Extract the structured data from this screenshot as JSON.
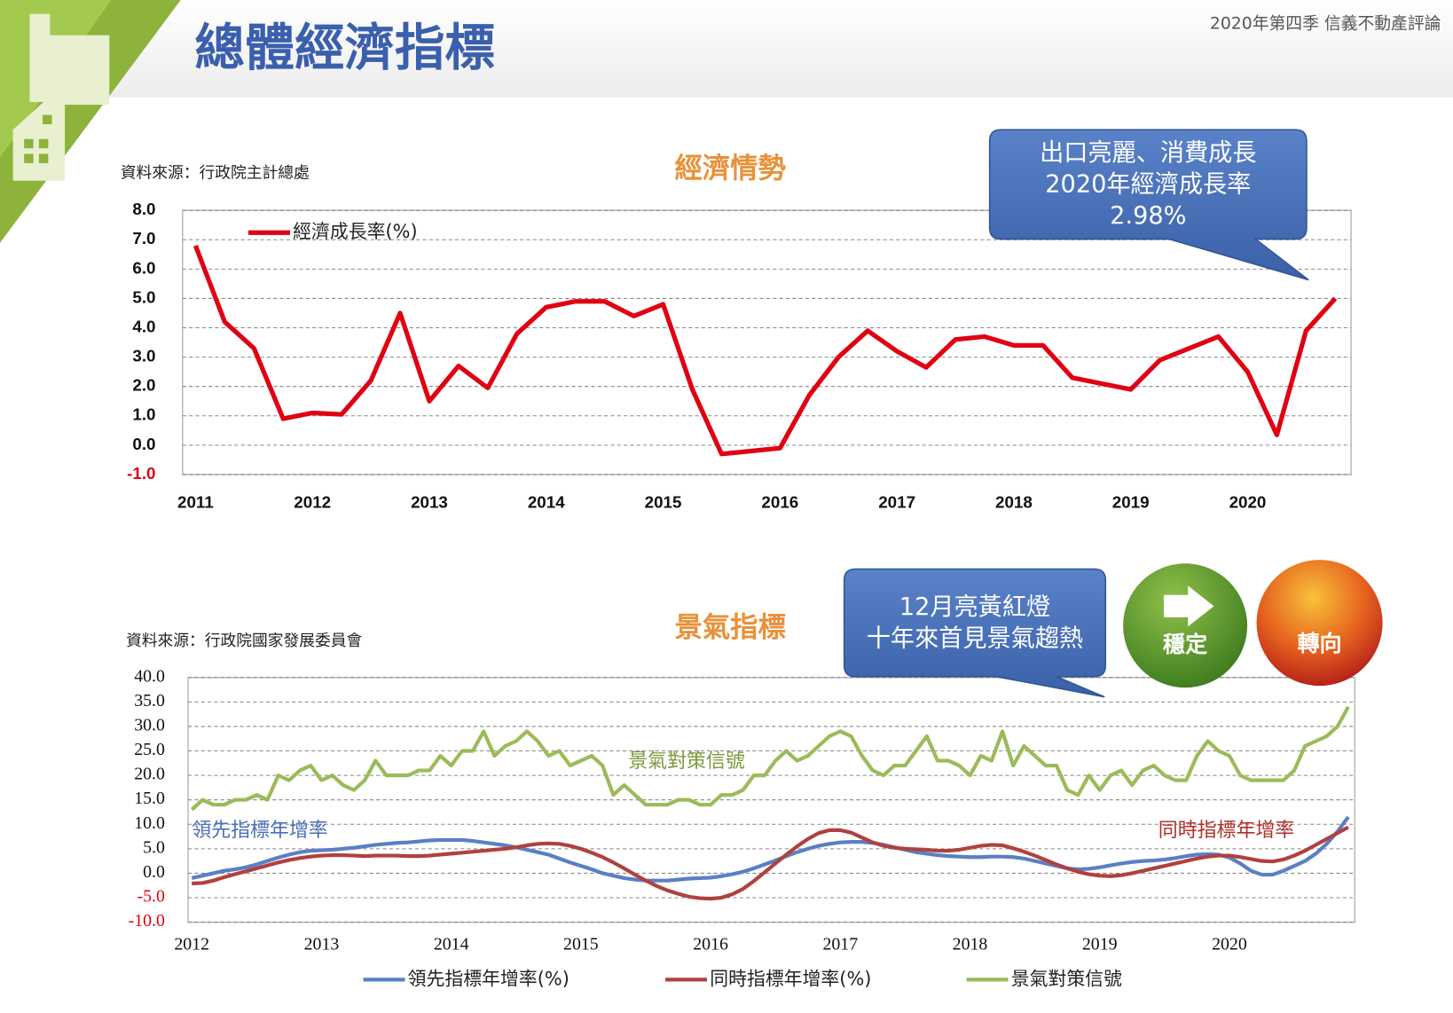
{
  "header": {
    "title": "總體經濟指標",
    "issue": "2020年第四季  信義不動產評論"
  },
  "callouts": [
    {
      "lines": [
        "出口亮麗、消費成長",
        "2020年經濟成長率",
        "2.98%"
      ]
    },
    {
      "lines": [
        "12月亮黃紅燈",
        "十年來首見景氣趨熱"
      ]
    }
  ],
  "badges": [
    "穩定",
    "轉向"
  ],
  "chart_data": [
    {
      "type": "line",
      "title": "經濟情勢",
      "source": "資料來源：行政院主計總處",
      "categories": [
        "2011",
        null,
        null,
        null,
        "2012",
        null,
        null,
        null,
        "2013",
        null,
        null,
        null,
        "2014",
        null,
        null,
        null,
        "2015",
        null,
        null,
        null,
        "2016",
        null,
        null,
        null,
        "2017",
        null,
        null,
        null,
        "2018",
        null,
        null,
        null,
        "2019",
        null,
        null,
        null,
        "2020",
        null,
        null,
        null
      ],
      "series": [
        {
          "name": "經濟成長率(%)",
          "color": "#e00012",
          "values": [
            6.8,
            4.2,
            3.3,
            0.9,
            1.1,
            1.05,
            2.2,
            4.5,
            1.5,
            2.7,
            1.95,
            3.8,
            4.7,
            4.9,
            4.9,
            4.4,
            4.8,
            1.9,
            -0.3,
            -0.2,
            -0.1,
            1.7,
            3.0,
            3.9,
            3.2,
            2.65,
            3.6,
            3.7,
            3.4,
            3.4,
            2.3,
            2.1,
            1.9,
            2.9,
            3.3,
            3.7,
            2.5,
            0.35,
            3.9,
            5.0
          ]
        }
      ],
      "ylim": [
        -1,
        8
      ],
      "yticks": [
        {
          "value": -1,
          "label": "-1.0"
        },
        {
          "value": 0,
          "label": "0.0"
        },
        {
          "value": 1,
          "label": "1.0"
        },
        {
          "value": 2,
          "label": "2.0"
        },
        {
          "value": 3,
          "label": "3.0"
        },
        {
          "value": 4,
          "label": "4.0"
        },
        {
          "value": 5,
          "label": "5.0"
        },
        {
          "value": 6,
          "label": "6.0"
        },
        {
          "value": 7,
          "label": "7.0"
        },
        {
          "value": 8,
          "label": "8.0"
        }
      ],
      "grid": true,
      "legend": "top-left"
    },
    {
      "type": "line",
      "title": "景氣指標",
      "source": "資料來源：行政院國家發展委員會",
      "categories": [
        "2012",
        null,
        null,
        null,
        null,
        null,
        null,
        null,
        null,
        null,
        null,
        null,
        "2013",
        null,
        null,
        null,
        null,
        null,
        null,
        null,
        null,
        null,
        null,
        null,
        "2014",
        null,
        null,
        null,
        null,
        null,
        null,
        null,
        null,
        null,
        null,
        null,
        "2015",
        null,
        null,
        null,
        null,
        null,
        null,
        null,
        null,
        null,
        null,
        null,
        "2016",
        null,
        null,
        null,
        null,
        null,
        null,
        null,
        null,
        null,
        null,
        null,
        "2017",
        null,
        null,
        null,
        null,
        null,
        null,
        null,
        null,
        null,
        null,
        null,
        "2018",
        null,
        null,
        null,
        null,
        null,
        null,
        null,
        null,
        null,
        null,
        null,
        "2019",
        null,
        null,
        null,
        null,
        null,
        null,
        null,
        null,
        null,
        null,
        null,
        "2020",
        null,
        null,
        null,
        null,
        null,
        null,
        null,
        null,
        null,
        null,
        null
      ],
      "series": [
        {
          "name": "領先指標年增率(%)",
          "color": "#5b7fc4",
          "values": [
            -1,
            -0.5,
            0,
            0.5,
            0.8,
            1.2,
            1.8,
            2.5,
            3.2,
            3.8,
            4.3,
            4.6,
            4.7,
            4.8,
            5,
            5.2,
            5.5,
            5.8,
            6,
            6.2,
            6.3,
            6.5,
            6.7,
            6.8,
            6.8,
            6.8,
            6.6,
            6.3,
            6,
            5.7,
            5.3,
            4.8,
            4.3,
            3.8,
            3,
            2.2,
            1.5,
            0.8,
            0,
            -0.5,
            -1,
            -1.3,
            -1.5,
            -1.5,
            -1.5,
            -1.3,
            -1.1,
            -1,
            -0.9,
            -0.6,
            -0.2,
            0.3,
            1,
            1.8,
            2.6,
            3.5,
            4.3,
            5,
            5.6,
            6,
            6.3,
            6.4,
            6.4,
            6.2,
            5.8,
            5.3,
            4.8,
            4.3,
            4,
            3.7,
            3.5,
            3.4,
            3.3,
            3.3,
            3.4,
            3.4,
            3.3,
            3,
            2.5,
            2,
            1.5,
            1,
            0.8,
            0.9,
            1.2,
            1.6,
            2,
            2.3,
            2.5,
            2.6,
            2.8,
            3.1,
            3.5,
            3.8,
            3.9,
            3.8,
            3.2,
            2,
            0.5,
            -0.3,
            -0.3,
            0.5,
            1.5,
            2.5,
            4,
            6,
            8.5,
            11.5
          ]
        },
        {
          "name": "同時指標年增率(%)",
          "color": "#b0413e",
          "values": [
            -2.1,
            -2,
            -1.5,
            -0.8,
            -0.2,
            0.4,
            1,
            1.6,
            2.2,
            2.7,
            3.1,
            3.4,
            3.6,
            3.7,
            3.7,
            3.6,
            3.5,
            3.6,
            3.6,
            3.6,
            3.5,
            3.5,
            3.6,
            3.8,
            4,
            4.2,
            4.4,
            4.6,
            4.8,
            5,
            5.3,
            5.7,
            6,
            6.1,
            6,
            5.6,
            5,
            4.2,
            3.3,
            2.2,
            1,
            -0.3,
            -1.5,
            -2.6,
            -3.5,
            -4.2,
            -4.8,
            -5.1,
            -5.2,
            -5,
            -4.3,
            -3.2,
            -1.6,
            0.2,
            2,
            3.8,
            5.5,
            7,
            8.2,
            8.8,
            8.8,
            8.3,
            7.3,
            6.3,
            5.6,
            5.2,
            5,
            4.9,
            4.8,
            4.6,
            4.6,
            4.8,
            5.2,
            5.6,
            5.8,
            5.7,
            5.1,
            4.4,
            3.6,
            2.7,
            1.8,
            1,
            0.3,
            -0.2,
            -0.5,
            -0.6,
            -0.4,
            0,
            0.5,
            1,
            1.5,
            2,
            2.5,
            3,
            3.4,
            3.6,
            3.6,
            3.3,
            2.9,
            2.5,
            2.4,
            2.8,
            3.6,
            4.6,
            5.8,
            7,
            8.2,
            9.4
          ]
        },
        {
          "name": "景氣對策信號",
          "color": "#9bbb59",
          "values": [
            13,
            15,
            14,
            14,
            15,
            15,
            16,
            15,
            20,
            19,
            21,
            22,
            19,
            20,
            18,
            17,
            19,
            23,
            20,
            20,
            20,
            21,
            21,
            24,
            22,
            25,
            25,
            29,
            24,
            26,
            27,
            29,
            27,
            24,
            25,
            22,
            23,
            24,
            22,
            16,
            18,
            16,
            14,
            14,
            14,
            15,
            15,
            14,
            14,
            16,
            16,
            17,
            20,
            20,
            23,
            25,
            23,
            24,
            26,
            28,
            29,
            28,
            24,
            21,
            20,
            22,
            22,
            25,
            28,
            23,
            23,
            22,
            20,
            24,
            23,
            29,
            22,
            26,
            24,
            22,
            22,
            17,
            16,
            20,
            17,
            20,
            21,
            18,
            21,
            22,
            20,
            19,
            19,
            24,
            27,
            25,
            24,
            20,
            19,
            19,
            19,
            19,
            21,
            26,
            27,
            28,
            30,
            34
          ]
        }
      ],
      "annotations": [
        "景氣對策信號",
        "領先指標年增率",
        "同時指標年增率"
      ],
      "ylim": [
        -10,
        40
      ],
      "yticks": [
        {
          "value": -10,
          "label": "-10.0"
        },
        {
          "value": -5,
          "label": "-5.0"
        },
        {
          "value": 0,
          "label": "0.0"
        },
        {
          "value": 5,
          "label": "5.0"
        },
        {
          "value": 10,
          "label": "10.0"
        },
        {
          "value": 15,
          "label": "15.0"
        },
        {
          "value": 20,
          "label": "20.0"
        },
        {
          "value": 25,
          "label": "25.0"
        },
        {
          "value": 30,
          "label": "30.0"
        },
        {
          "value": 35,
          "label": "35.0"
        },
        {
          "value": 40,
          "label": "40.0"
        }
      ],
      "grid": true,
      "legend": "bottom"
    }
  ]
}
